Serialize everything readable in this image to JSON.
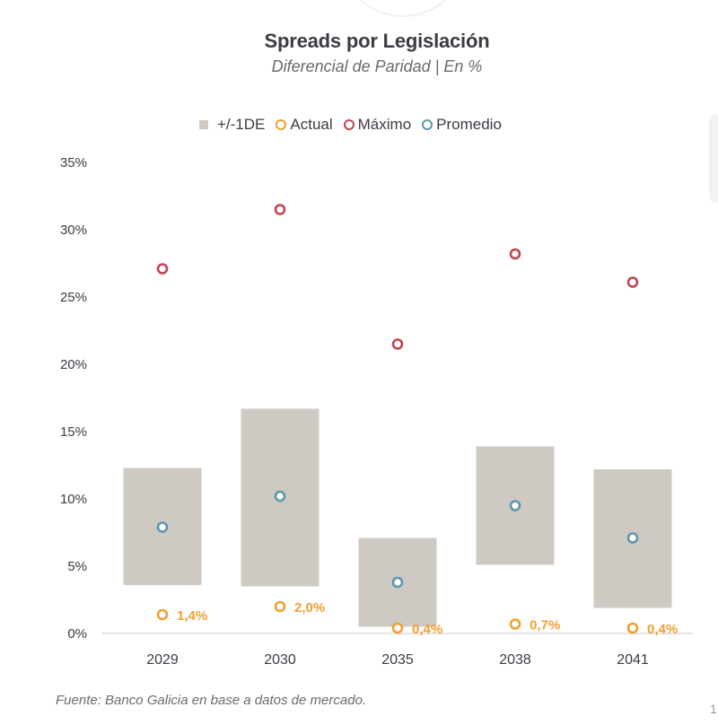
{
  "chart_data": {
    "type": "scatter",
    "title": "Spreads por Legislación",
    "subtitle": "Diferencial de Paridad | En %",
    "xlabel": "",
    "ylabel": "",
    "ylim": [
      0,
      35
    ],
    "yticks": [
      0,
      5,
      10,
      15,
      20,
      25,
      30,
      35
    ],
    "ytick_labels": [
      "0%",
      "5%",
      "10%",
      "15%",
      "20%",
      "25%",
      "30%",
      "35%"
    ],
    "grid": false,
    "legend_position": "top-center",
    "categories": [
      "2029",
      "2030",
      "2035",
      "2038",
      "2041"
    ],
    "series": [
      {
        "name": "+/-1DE",
        "kind": "range-bar",
        "color": "#cfc9c3",
        "low": [
          3.6,
          3.5,
          0.5,
          5.1,
          1.9
        ],
        "high": [
          12.3,
          16.7,
          7.1,
          13.9,
          12.2
        ]
      },
      {
        "name": "Actual",
        "kind": "marker",
        "color": "#f0a030",
        "values": [
          1.4,
          2.0,
          0.4,
          0.7,
          0.4
        ],
        "labels": [
          "1,4%",
          "2,0%",
          "0,4%",
          "0,7%",
          "0,4%"
        ]
      },
      {
        "name": "Máximo",
        "kind": "marker",
        "color": "#c0454f",
        "values": [
          27.1,
          31.5,
          21.5,
          28.2,
          26.1
        ]
      },
      {
        "name": "Promedio",
        "kind": "marker",
        "color": "#5b97ad",
        "values": [
          7.9,
          10.2,
          3.8,
          9.5,
          7.1
        ]
      }
    ]
  },
  "legend": {
    "items": [
      {
        "label": "+/-1DE",
        "color": "#cfc9c3",
        "shape": "square"
      },
      {
        "label": "Actual",
        "color": "#f0a030",
        "shape": "ring"
      },
      {
        "label": "Máximo",
        "color": "#c0454f",
        "shape": "ring"
      },
      {
        "label": "Promedio",
        "color": "#5b97ad",
        "shape": "ring"
      }
    ]
  },
  "footer": "Fuente: Banco Galicia en base a datos de mercado.",
  "page_number": "1"
}
